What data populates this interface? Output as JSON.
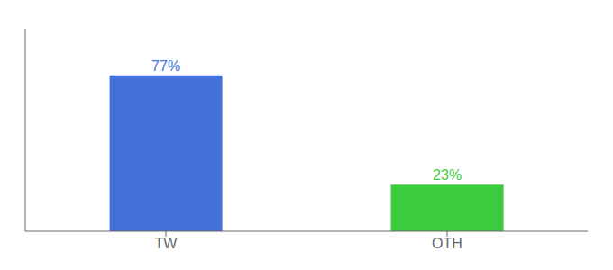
{
  "chart_data": {
    "type": "bar",
    "categories": [
      "TW",
      "OTH"
    ],
    "values": [
      77,
      23
    ],
    "value_labels": [
      "77%",
      "23%"
    ],
    "colors": [
      "#4472db",
      "#3dcc3d"
    ],
    "ylim": [
      0,
      100
    ],
    "grid": false,
    "tick_labels": "x"
  }
}
